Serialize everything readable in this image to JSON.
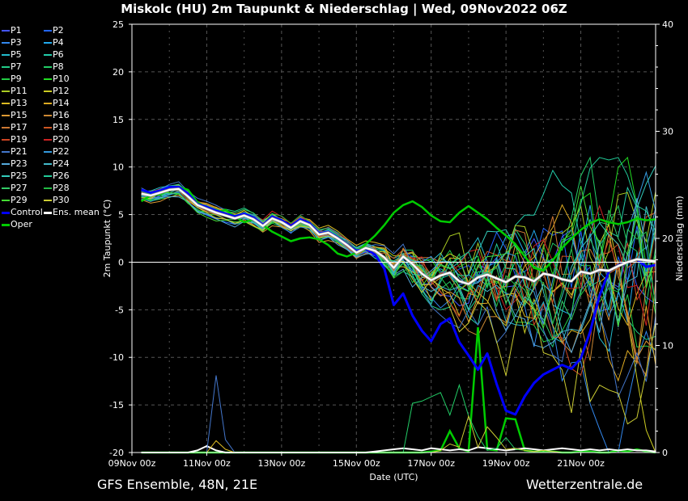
{
  "title": "Miskolc  (HU)  2m Taupunkt & Niederschlag | Wed, 09Nov2022 06Z",
  "footer": {
    "left": "GFS Ensemble, 48N, 21E",
    "right": "Wetterzentrale.de"
  },
  "colors": {
    "control": "#0000ff",
    "oper": "#00cc00",
    "mean": "#ffffff",
    "grid": "#555555"
  },
  "legend": [
    {
      "label": "P1",
      "color": "#4455ff"
    },
    {
      "label": "P2",
      "color": "#2266ff"
    },
    {
      "label": "P3",
      "color": "#3388ee"
    },
    {
      "label": "P4",
      "color": "#22aaee"
    },
    {
      "label": "P5",
      "color": "#22bbcc"
    },
    {
      "label": "P6",
      "color": "#22ccaa"
    },
    {
      "label": "P7",
      "color": "#22cc88"
    },
    {
      "label": "P8",
      "color": "#22cc66"
    },
    {
      "label": "P9",
      "color": "#22cc44"
    },
    {
      "label": "P10",
      "color": "#22dd22"
    },
    {
      "label": "P11",
      "color": "#aacc22"
    },
    {
      "label": "P12",
      "color": "#cccc22"
    },
    {
      "label": "P13",
      "color": "#ddbb22"
    },
    {
      "label": "P14",
      "color": "#ddaa22"
    },
    {
      "label": "P15",
      "color": "#dd9933"
    },
    {
      "label": "P16",
      "color": "#cc8833"
    },
    {
      "label": "P17",
      "color": "#cc7733"
    },
    {
      "label": "P18",
      "color": "#cc5522"
    },
    {
      "label": "P19",
      "color": "#cc4422"
    },
    {
      "label": "P20",
      "color": "#cc2222"
    },
    {
      "label": "P21",
      "color": "#4477cc"
    },
    {
      "label": "P22",
      "color": "#3399dd"
    },
    {
      "label": "P23",
      "color": "#55aadd"
    },
    {
      "label": "P24",
      "color": "#44bbcc"
    },
    {
      "label": "P25",
      "color": "#33ccbb"
    },
    {
      "label": "P26",
      "color": "#22cc99"
    },
    {
      "label": "P27",
      "color": "#33cc66"
    },
    {
      "label": "P28",
      "color": "#22bb44"
    },
    {
      "label": "P29",
      "color": "#44dd33"
    },
    {
      "label": "P30",
      "color": "#cccc33"
    },
    {
      "label": "Control",
      "color": "#0000ff"
    },
    {
      "label": "Ens. mean",
      "color": "#ffffff"
    },
    {
      "label": "Oper",
      "color": "#00cc00"
    }
  ],
  "chart_data": {
    "type": "line",
    "title": "Miskolc  (HU)  2m Taupunkt & Niederschlag | Wed, 09Nov2022 06Z",
    "xlabel": "Date (UTC)",
    "ylabel": "2m Taupunkt (°C)",
    "y2label": "Niederschlag (mm)",
    "ylim": [
      -20,
      25
    ],
    "y2lim": [
      0,
      40
    ],
    "yticks": [
      25,
      20,
      15,
      10,
      5,
      0,
      -5,
      -10,
      -15,
      -20
    ],
    "y2ticks": [
      40,
      30,
      20,
      10,
      0
    ],
    "xlim_hours": [
      0,
      336
    ],
    "xticks": [
      {
        "hour": 0,
        "label": "09Nov 00z"
      },
      {
        "hour": 48,
        "label": "11Nov 00z"
      },
      {
        "hour": 96,
        "label": "13Nov 00z"
      },
      {
        "hour": 144,
        "label": "15Nov 00z"
      },
      {
        "hour": 192,
        "label": "17Nov 00z"
      },
      {
        "hour": 240,
        "label": "19Nov 00z"
      },
      {
        "hour": 288,
        "label": "21Nov 00z"
      }
    ],
    "grid": true,
    "x_hours": [
      6,
      12,
      18,
      24,
      30,
      36,
      42,
      48,
      54,
      60,
      66,
      72,
      78,
      84,
      90,
      96,
      102,
      108,
      114,
      120,
      126,
      132,
      138,
      144,
      150,
      156,
      162,
      168,
      174,
      180,
      186,
      192,
      198,
      204,
      210,
      216,
      222,
      228,
      234,
      240,
      246,
      252,
      258,
      264,
      270,
      276,
      282,
      288,
      294,
      300,
      306,
      312,
      318,
      324,
      330,
      336
    ],
    "series": [
      {
        "name": "Ens. mean",
        "role": "mean",
        "axis": "temp",
        "values": [
          7.2,
          7.0,
          7.3,
          7.6,
          7.7,
          6.9,
          6.0,
          5.6,
          5.2,
          4.9,
          4.6,
          4.9,
          4.5,
          3.8,
          4.6,
          4.2,
          3.6,
          4.3,
          3.9,
          2.9,
          3.1,
          2.5,
          1.8,
          1.0,
          1.5,
          1.2,
          0.5,
          -0.6,
          0.6,
          -0.2,
          -1.2,
          -1.9,
          -1.4,
          -1.1,
          -2.0,
          -2.3,
          -1.6,
          -1.3,
          -1.7,
          -2.1,
          -1.5,
          -1.6,
          -2.0,
          -1.2,
          -1.4,
          -1.8,
          -2.0,
          -1.0,
          -1.2,
          -0.8,
          -0.9,
          -0.4,
          0.0,
          0.3,
          0.2,
          0.1
        ]
      },
      {
        "name": "Control",
        "role": "control",
        "axis": "temp",
        "values": [
          7.6,
          7.3,
          7.5,
          7.9,
          7.9,
          7.2,
          6.1,
          5.8,
          5.4,
          5.1,
          4.8,
          5.1,
          4.7,
          3.9,
          4.8,
          4.4,
          3.8,
          4.5,
          4.1,
          3.0,
          3.2,
          2.6,
          1.9,
          1.2,
          1.4,
          0.8,
          -0.7,
          -4.5,
          -3.3,
          -5.6,
          -7.2,
          -8.3,
          -6.5,
          -5.9,
          -8.4,
          -9.8,
          -11.3,
          -9.6,
          -12.8,
          -15.6,
          -16.0,
          -14.1,
          -12.7,
          -11.8,
          -11.3,
          -10.8,
          -11.2,
          -10.1,
          -7.3,
          -3.5,
          -1.0,
          -0.3,
          0.0,
          0.3,
          -0.5,
          -0.3
        ]
      },
      {
        "name": "Oper",
        "role": "oper",
        "axis": "temp",
        "values": [
          6.4,
          7.0,
          7.1,
          7.6,
          7.9,
          7.6,
          6.3,
          5.7,
          5.2,
          5.5,
          4.8,
          4.2,
          4.5,
          3.9,
          3.2,
          2.7,
          2.2,
          2.5,
          2.6,
          2.4,
          1.8,
          0.9,
          0.6,
          1.0,
          1.9,
          2.8,
          3.9,
          5.2,
          6.0,
          6.4,
          5.8,
          4.9,
          4.3,
          4.2,
          5.2,
          5.9,
          5.2,
          4.5,
          3.6,
          2.8,
          1.9,
          0.6,
          -0.6,
          -0.9,
          0.2,
          1.5,
          2.5,
          3.4,
          4.1,
          4.5,
          4.2,
          4.0,
          4.2,
          4.6,
          4.4,
          4.5
        ]
      },
      {
        "name": "Oper precip",
        "role": "oper-precip",
        "axis": "precip",
        "values": [
          0,
          0,
          0,
          0,
          0,
          0,
          0,
          0,
          0,
          0,
          0,
          0,
          0,
          0,
          0,
          0,
          0,
          0,
          0,
          0,
          0,
          0,
          0,
          0,
          0,
          0,
          0,
          0,
          0,
          0,
          0,
          0.1,
          0.2,
          2.0,
          0.4,
          0.1,
          11.7,
          0.3,
          0.2,
          3.2,
          3.1,
          0.2,
          0.1,
          0.1,
          0.1,
          0,
          0,
          0.1,
          0.1,
          0,
          0,
          0.2,
          0.1,
          0.3,
          0.1,
          0
        ]
      },
      {
        "name": "Mean precip",
        "role": "mean-precip",
        "axis": "precip",
        "values": [
          0,
          0,
          0,
          0,
          0,
          0,
          0.2,
          0.6,
          0.2,
          0,
          0,
          0,
          0,
          0,
          0,
          0,
          0,
          0,
          0,
          0,
          0,
          0,
          0,
          0,
          0,
          0.1,
          0.2,
          0.3,
          0.4,
          0.3,
          0.2,
          0.4,
          0.3,
          0.2,
          0.3,
          0.2,
          0.5,
          0.4,
          0.3,
          0.2,
          0.3,
          0.4,
          0.3,
          0.2,
          0.3,
          0.4,
          0.3,
          0.2,
          0.3,
          0.2,
          0.3,
          0.2,
          0.3,
          0.2,
          0.2,
          0.1
        ]
      },
      {
        "name": "P21 precip",
        "role": "member-precip",
        "color": "#4477cc",
        "axis": "precip",
        "values": [
          0,
          0,
          0,
          0,
          0,
          0,
          0,
          0,
          7.2,
          1.2,
          0,
          0,
          0,
          0,
          0,
          0,
          0,
          0,
          0,
          0,
          0,
          0,
          0,
          0,
          0,
          0,
          0,
          0,
          0,
          0,
          0,
          0,
          0,
          0,
          0,
          0,
          0,
          0,
          0,
          0,
          0,
          0,
          0,
          0,
          0,
          0,
          0,
          0,
          0,
          0,
          0,
          0,
          0,
          0,
          0,
          0
        ]
      },
      {
        "name": "P13 precip",
        "role": "member-precip",
        "color": "#ddbb22",
        "axis": "precip",
        "values": [
          0,
          0,
          0,
          0,
          0,
          0,
          0,
          0,
          1.1,
          0.3,
          0,
          0,
          0,
          0,
          0,
          0,
          0,
          0,
          0,
          0,
          0,
          0,
          0,
          0,
          0,
          0,
          0,
          0,
          0,
          0,
          0,
          0,
          0,
          0,
          0,
          0,
          0,
          0,
          0,
          0,
          0,
          0,
          0,
          0,
          0,
          0,
          0,
          0,
          0,
          0,
          0,
          0,
          0,
          0,
          0,
          0
        ]
      },
      {
        "name": "P8 precip",
        "role": "member-precip",
        "color": "#22cc66",
        "axis": "precip",
        "values": [
          0,
          0,
          0,
          0,
          0,
          0,
          0,
          0,
          0,
          0,
          0,
          0,
          0,
          0,
          0,
          0,
          0,
          0,
          0,
          0,
          0,
          0,
          0,
          0,
          0,
          0,
          0,
          0,
          0,
          4.6,
          4.8,
          5.2,
          5.6,
          3.5,
          6.3,
          3.4,
          1.5,
          0.2,
          0.4,
          1.4,
          0.3,
          0.2,
          0.1,
          0.2,
          0.1,
          0,
          0,
          0,
          0,
          0,
          0,
          0,
          0,
          0,
          0,
          0
        ]
      },
      {
        "name": "P30 precip",
        "role": "member-precip",
        "color": "#cccc33",
        "axis": "precip",
        "values": [
          0,
          0,
          0,
          0,
          0,
          0,
          0,
          0,
          0,
          0,
          0,
          0,
          0,
          0,
          0,
          0,
          0,
          0,
          0,
          0,
          0,
          0,
          0,
          0,
          0,
          0,
          0,
          0,
          0,
          0,
          0,
          0,
          0.2,
          0.8,
          0.5,
          3.4,
          0.5,
          2.4,
          1.4,
          0.3,
          0.4,
          0.2,
          0.1,
          0.2,
          0.1,
          0,
          0,
          0,
          0,
          0,
          0,
          0,
          0,
          0,
          0,
          0
        ]
      }
    ]
  }
}
